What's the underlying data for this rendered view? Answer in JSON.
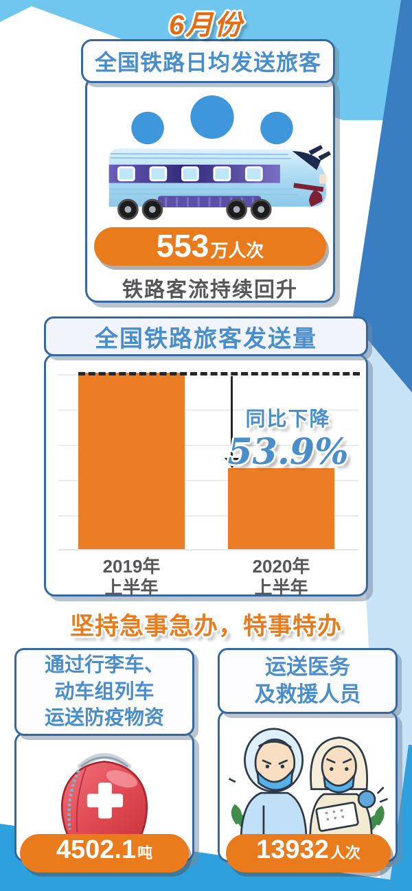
{
  "page_title": "6月份",
  "colors": {
    "orange": "#E97B1C",
    "blue_text": "#4A8DCB",
    "card_border": "#35689F",
    "sky_blue": "#6FC6EF",
    "dark_band_blue": "#3A7EC2",
    "pale_blue": "#C9E3F6",
    "bottom_wedge_blue": "#2FA0DE",
    "gray_text": "#55565A",
    "bar_orange": "#ED7D25"
  },
  "daily_card": {
    "title": "全国铁路日均发送旅客",
    "value": "553",
    "unit": "万人次",
    "caption": "铁路客流持续回升"
  },
  "chart_card": {
    "title": "全国铁路旅客发送量",
    "annotation_label": "同比下降",
    "annotation_value": "53.9%",
    "bar_labels": [
      {
        "line1": "2019年",
        "line2": "上半年"
      },
      {
        "line1": "2020年",
        "line2": "上半年"
      }
    ]
  },
  "chart_data": {
    "type": "bar",
    "title": "全国铁路旅客发送量",
    "categories": [
      "2019年上半年",
      "2020年上半年"
    ],
    "values": [
      100,
      46.1
    ],
    "value_note": "no numeric axis shown; values are relative index read from bar heights (2019上半年 = 100, 2020上半年 down 53.9%)",
    "annotation": "同比下降53.9%",
    "bar_color": "#ED7D25",
    "grid": true,
    "legend": false,
    "ylim": [
      0,
      100
    ]
  },
  "slogan": "坚持急事急办，特事特办",
  "supplies_card": {
    "title_lines": [
      "通过行李车、",
      "动车组列车",
      "运送防疫物资"
    ],
    "value": "4502.1",
    "unit": "吨"
  },
  "personnel_card": {
    "title_lines": [
      "运送医务",
      "及救援人员"
    ],
    "value": "13932",
    "unit": "人次"
  }
}
